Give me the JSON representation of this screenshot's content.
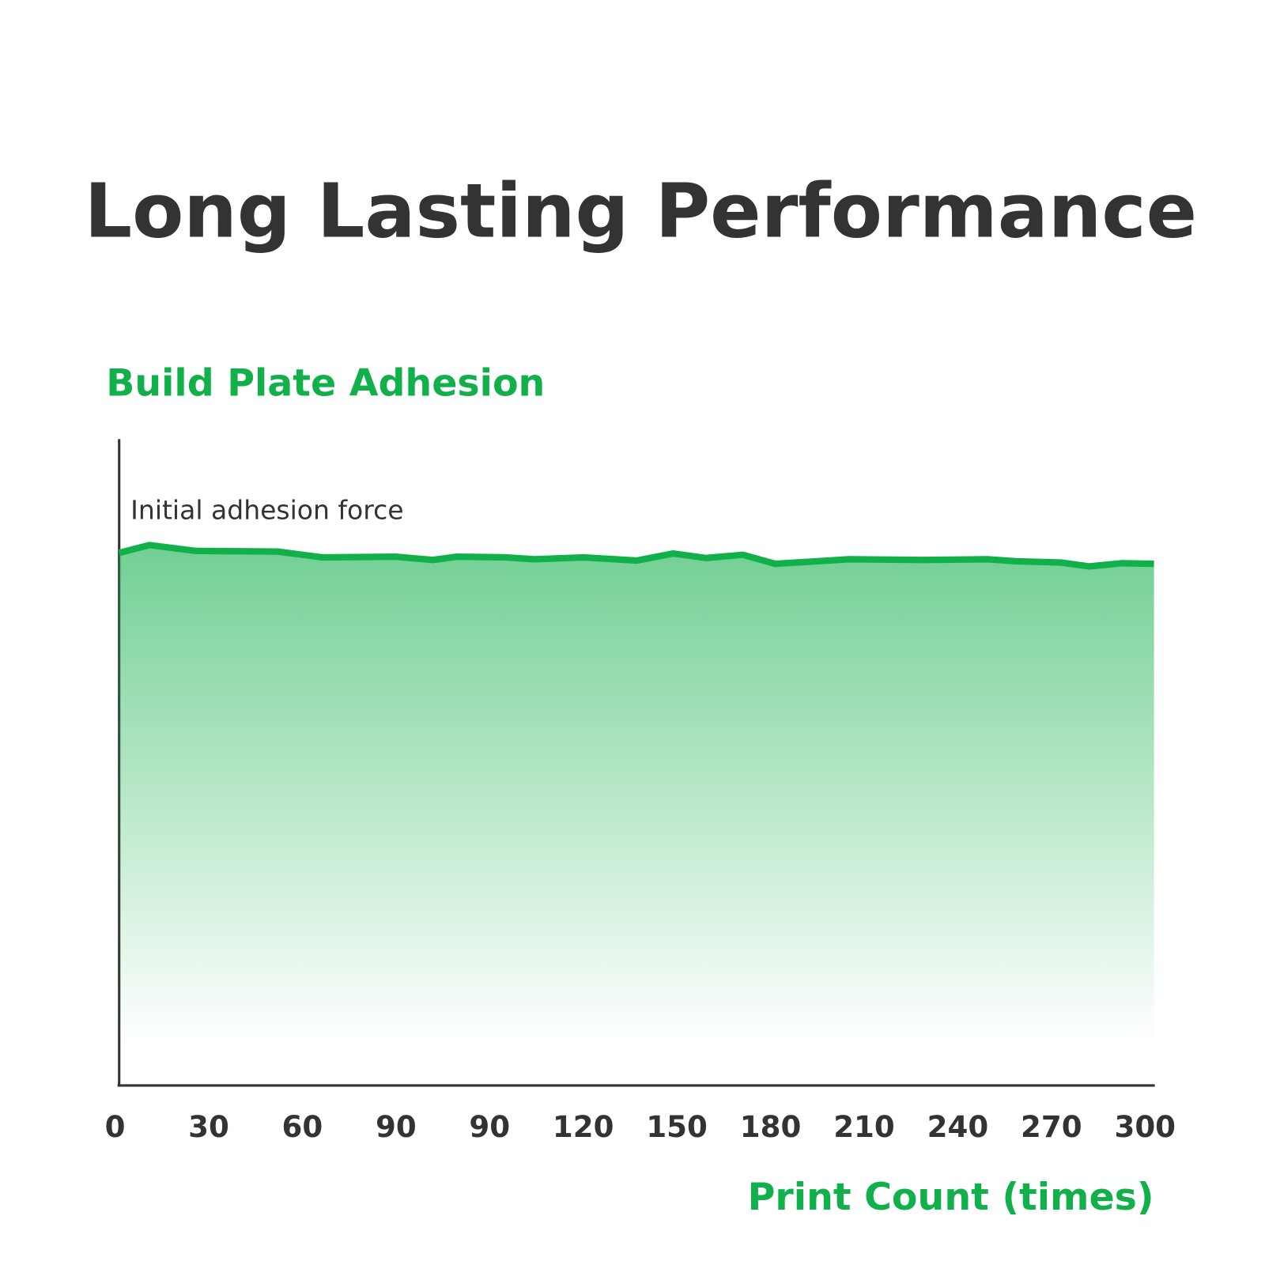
{
  "chart_data": {
    "type": "area",
    "title": "Long Lasting Performance",
    "subtitle": "Build Plate Adhesion",
    "annotation": "Initial adhesion force",
    "x_label": "Print Count (times)",
    "xtick_labels": [
      "0",
      "30",
      "60",
      "90",
      "90",
      "120",
      "150",
      "180",
      "210",
      "240",
      "270",
      "300"
    ],
    "x": [
      0,
      8.8,
      22.2,
      45.9,
      58.9,
      80.2,
      90.9,
      97.9,
      112.1,
      120.4,
      134.6,
      150.0,
      160.6,
      170.1,
      180.8,
      190.2,
      211.5,
      232.8,
      251.7,
      260.0,
      273.0,
      281.3,
      290.8,
      300
    ],
    "values": [
      82.4,
      83.6,
      82.7,
      82.6,
      81.7,
      81.8,
      81.3,
      81.8,
      81.7,
      81.4,
      81.7,
      81.2,
      82.3,
      81.6,
      82.1,
      80.7,
      81.4,
      81.3,
      81.4,
      81.1,
      80.9,
      80.3,
      80.8,
      80.7
    ],
    "xlim": [
      0,
      300
    ],
    "ylim": [
      0,
      100
    ],
    "color": "#12b04a",
    "title_color": "#333333",
    "label_color": "#12b04a"
  }
}
